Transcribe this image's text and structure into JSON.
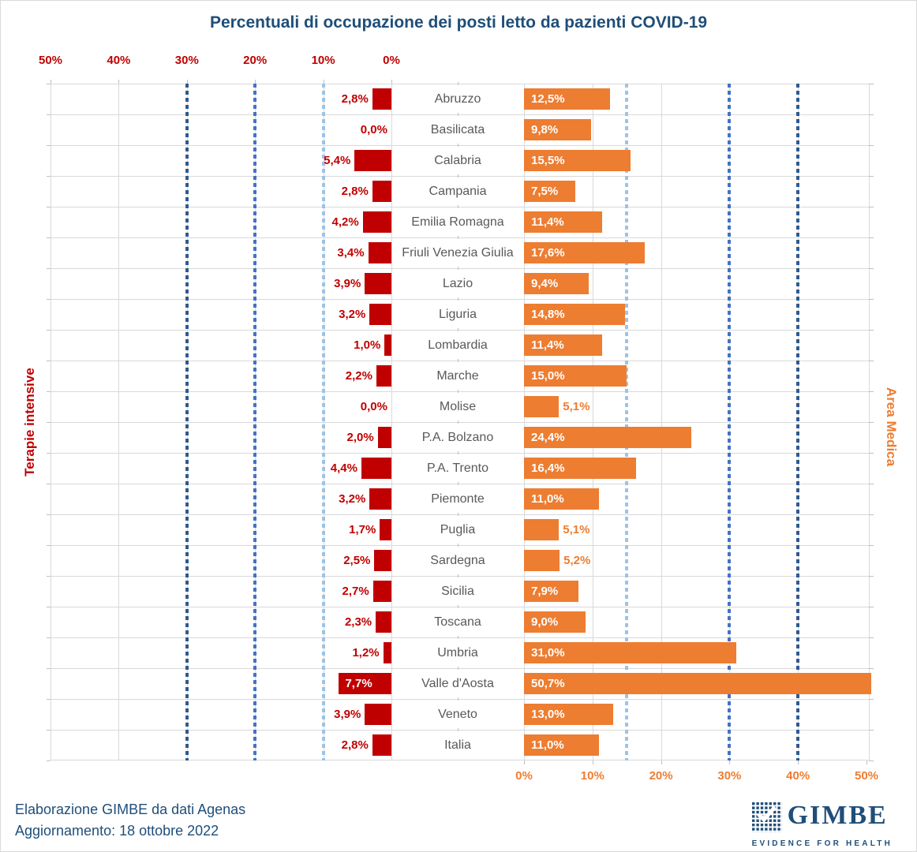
{
  "title": "Percentuali di occupazione dei posti letto da pazienti COVID-19",
  "footer": {
    "line1": "Elaborazione GIMBE da dati Agenas",
    "line2": "Aggiornamento: 18 ottobre 2022"
  },
  "logo": {
    "wordmark": "GIMBE",
    "tagline": "EVIDENCE FOR HEALTH"
  },
  "colors": {
    "title_blue": "#1f4e79",
    "intensive_red": "#c00000",
    "medical_orange": "#ed7d31",
    "grid_gray": "#d9d9d9",
    "category_gray": "#595959",
    "threshold_light": "#9dc3e6",
    "threshold_medium": "#4472c4",
    "threshold_dark": "#2e5b8f"
  },
  "chart_data": {
    "type": "bar",
    "orientation": "horizontal-diverging",
    "title": "Percentuali di occupazione dei posti letto da pazienti COVID-19",
    "axis_range": [
      0,
      50
    ],
    "grid": true,
    "gridline_step_pct": 10,
    "left_axis": {
      "title": "Terapie intensive",
      "direction": "right-to-left",
      "ticks": [
        {
          "value": 50,
          "label": "50%"
        },
        {
          "value": 40,
          "label": "40%"
        },
        {
          "value": 30,
          "label": "30%"
        },
        {
          "value": 20,
          "label": "20%"
        },
        {
          "value": 10,
          "label": "10%"
        },
        {
          "value": 0,
          "label": "0%"
        }
      ],
      "thresholds": [
        {
          "value": 10,
          "color": "#9dc3e6"
        },
        {
          "value": 20,
          "color": "#4472c4"
        },
        {
          "value": 30,
          "color": "#2e5b8f"
        }
      ]
    },
    "right_axis": {
      "title": "Area Medica",
      "direction": "left-to-right",
      "ticks": [
        {
          "value": 0,
          "label": "0%"
        },
        {
          "value": 10,
          "label": "10%"
        },
        {
          "value": 20,
          "label": "20%"
        },
        {
          "value": 30,
          "label": "30%"
        },
        {
          "value": 40,
          "label": "40%"
        },
        {
          "value": 50,
          "label": "50%"
        }
      ],
      "thresholds": [
        {
          "value": 15,
          "color": "#9dc3e6"
        },
        {
          "value": 30,
          "color": "#4472c4"
        },
        {
          "value": 40,
          "color": "#2e5b8f"
        }
      ]
    },
    "categories": [
      "Abruzzo",
      "Basilicata",
      "Calabria",
      "Campania",
      "Emilia Romagna",
      "Friuli Venezia Giulia",
      "Lazio",
      "Liguria",
      "Lombardia",
      "Marche",
      "Molise",
      "P.A. Bolzano",
      "P.A. Trento",
      "Piemonte",
      "Puglia",
      "Sardegna",
      "Sicilia",
      "Toscana",
      "Umbria",
      "Valle d'Aosta",
      "Veneto",
      "Italia"
    ],
    "series": [
      {
        "name": "Terapie intensive",
        "side": "left",
        "color": "#c00000",
        "values": [
          2.8,
          0.0,
          5.4,
          2.8,
          4.2,
          3.4,
          3.9,
          3.2,
          1.0,
          2.2,
          0.0,
          2.0,
          4.4,
          3.2,
          1.7,
          2.5,
          2.7,
          2.3,
          1.2,
          7.7,
          3.9,
          2.8
        ],
        "labels": [
          "2,8%",
          "0,0%",
          "5,4%",
          "2,8%",
          "4,2%",
          "3,4%",
          "3,9%",
          "3,2%",
          "1,0%",
          "2,2%",
          "0,0%",
          "2,0%",
          "4,4%",
          "3,2%",
          "1,7%",
          "2,5%",
          "2,7%",
          "2,3%",
          "1,2%",
          "7,7%",
          "3,9%",
          "2,8%"
        ]
      },
      {
        "name": "Area Medica",
        "side": "right",
        "color": "#ed7d31",
        "values": [
          12.5,
          9.8,
          15.5,
          7.5,
          11.4,
          17.6,
          9.4,
          14.8,
          11.4,
          15.0,
          5.1,
          24.4,
          16.4,
          11.0,
          5.1,
          5.2,
          7.9,
          9.0,
          31.0,
          50.7,
          13.0,
          11.0
        ],
        "labels": [
          "12,5%",
          "9,8%",
          "15,5%",
          "7,5%",
          "11,4%",
          "17,6%",
          "9,4%",
          "14,8%",
          "11,4%",
          "15,0%",
          "5,1%",
          "24,4%",
          "16,4%",
          "11,0%",
          "5,1%",
          "5,2%",
          "7,9%",
          "9,0%",
          "31,0%",
          "50,7%",
          "13,0%",
          "11,0%"
        ]
      }
    ]
  }
}
